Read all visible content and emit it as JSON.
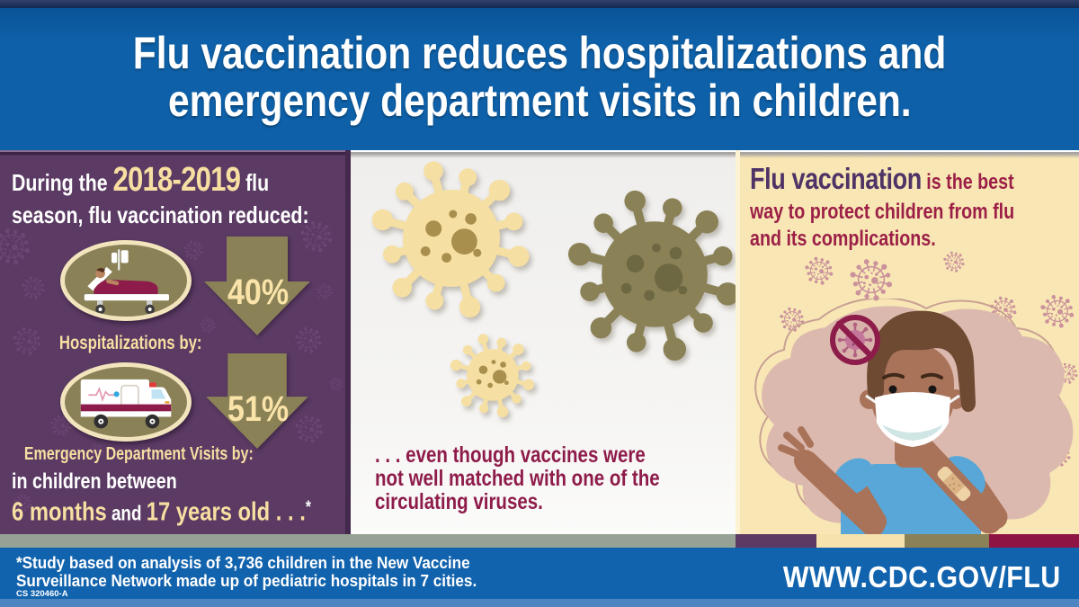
{
  "header": {
    "title_lines": [
      "Flu vaccination reduces hospitalizations and",
      "emergency department visits in children."
    ]
  },
  "left_panel": {
    "intro": {
      "prefix": "During the ",
      "highlight": "2018-2019",
      "suffix": " flu",
      "line2": "season, flu vaccination reduced:"
    },
    "stats": [
      {
        "icon": "hospital-bed-icon",
        "percent": "40%",
        "label": "Hospitalizations by:"
      },
      {
        "icon": "ambulance-icon",
        "percent": "51%",
        "label": "Emergency Department Visits by:"
      }
    ],
    "age": {
      "line1": "in children between",
      "months": "6 months",
      "and": " and ",
      "years": "17 years old . . .",
      "asterisk": "*"
    }
  },
  "middle_panel": {
    "caption_lines": [
      ". . . even though vaccines were",
      "not well matched with one of the",
      "circulating viruses."
    ]
  },
  "right_panel": {
    "heading": {
      "line1_bold": "Flu vaccination",
      "line1_rest": " is the best",
      "line2": "way to protect children from flu",
      "line3": "and its complications."
    }
  },
  "footer": {
    "note_lines": [
      "*Study based on analysis of 3,736 children in the New Vaccine",
      "Surveillance Network made up of pediatric hospitals in 7 cities."
    ],
    "document_id": "CS 320460-A",
    "url": "WWW.CDC.GOV/FLU"
  },
  "icons": {
    "virus-icon": "spiked virus particle",
    "down-arrow-icon": "large downward reduction arrow",
    "hospital-bed-icon": "patient in hospital bed",
    "ambulance-icon": "ambulance van",
    "no-virus-icon": "virus in crossed-out circle",
    "masked-boy-illustration": "boy wearing face mask showing vaccination bandage"
  },
  "colors": {
    "header_blue": "#0e61a9",
    "panel_purple": "#5b3a63",
    "accent_cream": "#f7dfa2",
    "olive": "#8a8157",
    "maroon": "#8e1c4a",
    "heading_purple": "#4f3366",
    "panel_cream": "#f8e7b4",
    "footer_blue": "#1263ad",
    "sage_strip": "#95a294",
    "shirt_blue": "#58a7d8",
    "blob_pink": "#dcb9ae"
  }
}
